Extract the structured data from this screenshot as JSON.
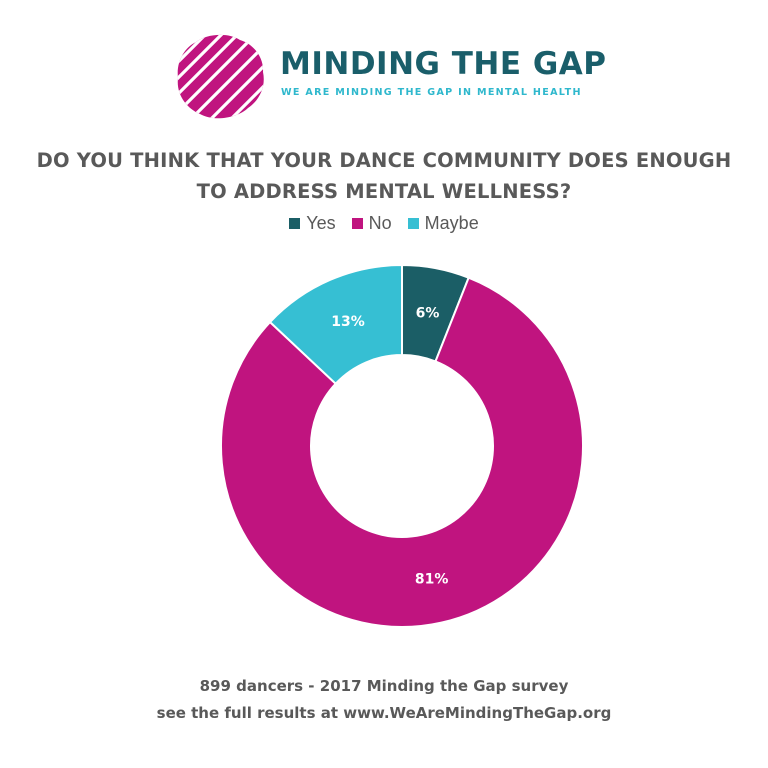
{
  "brand": {
    "title": "MINDING THE GAP",
    "tagline": "WE ARE MINDING THE GAP IN MENTAL HEALTH",
    "logo_icon": "brain-icon",
    "title_color": "#1a5e6a",
    "tagline_color": "#2fb8cd",
    "logo_color": "#c0147f"
  },
  "chart_data": {
    "type": "pie",
    "title_lines": [
      "DO YOU THINK THAT YOUR DANCE COMMUNITY DOES ENOUGH",
      "TO ADDRESS MENTAL WELLNESS?"
    ],
    "categories": [
      "Yes",
      "No",
      "Maybe"
    ],
    "values": [
      6,
      81,
      13
    ],
    "data_labels": [
      "6%",
      "81%",
      "13%"
    ],
    "colors": [
      "#1b5e66",
      "#c0147f",
      "#36bfd3"
    ],
    "donut": true,
    "legend_position": "top"
  },
  "footer": {
    "line1": "899 dancers - 2017 Minding the Gap survey",
    "line2": "see the full results at www.WeAreMindingTheGap.org"
  }
}
